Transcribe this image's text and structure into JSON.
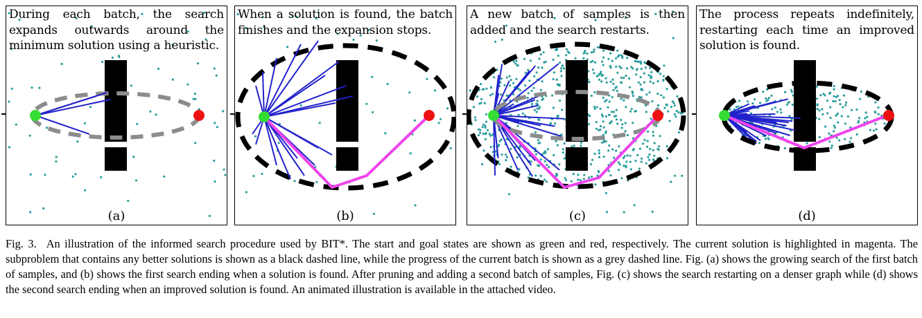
{
  "panels": [
    {
      "id": "a",
      "label": "(a)",
      "text": "During each batch, the search expands outwards around the minimum solution using a heuristic."
    },
    {
      "id": "b",
      "label": "(b)",
      "text": "When a solution is found, the batch finishes and the expansion stops."
    },
    {
      "id": "c",
      "label": "(c)",
      "text": "A new batch of samples is then added and the search restarts."
    },
    {
      "id": "d",
      "label": "(d)",
      "text": "The process repeats indefinitely, restarting each time an improved solution is found."
    }
  ],
  "caption": {
    "number": "Fig. 3.",
    "text": "An illustration of the informed search procedure used by BIT*. The start and goal states are shown as green and red, respectively. The current solution is highlighted in magenta. The subproblem that contains any better solutions is shown as a black dashed line, while the progress of the current batch is shown as a grey dashed line. Fig. (a) shows the growing search of the first batch of samples, and (b) shows the first search ending when a solution is found. After pruning and adding a second batch of samples, Fig. (c) shows the search restarting on a denser graph while (d) shows the second search ending when an improved solution is found. An animated illustration is available in the attached video."
  },
  "colors": {
    "start": "#33dd33",
    "goal": "#ee1111",
    "solution": "#ee44ee",
    "edges": "#2222cc",
    "samples": "#2a9d9d",
    "subproblem": "#000000",
    "batch_progress": "#8c8c8c",
    "obstacle": "#000000"
  }
}
